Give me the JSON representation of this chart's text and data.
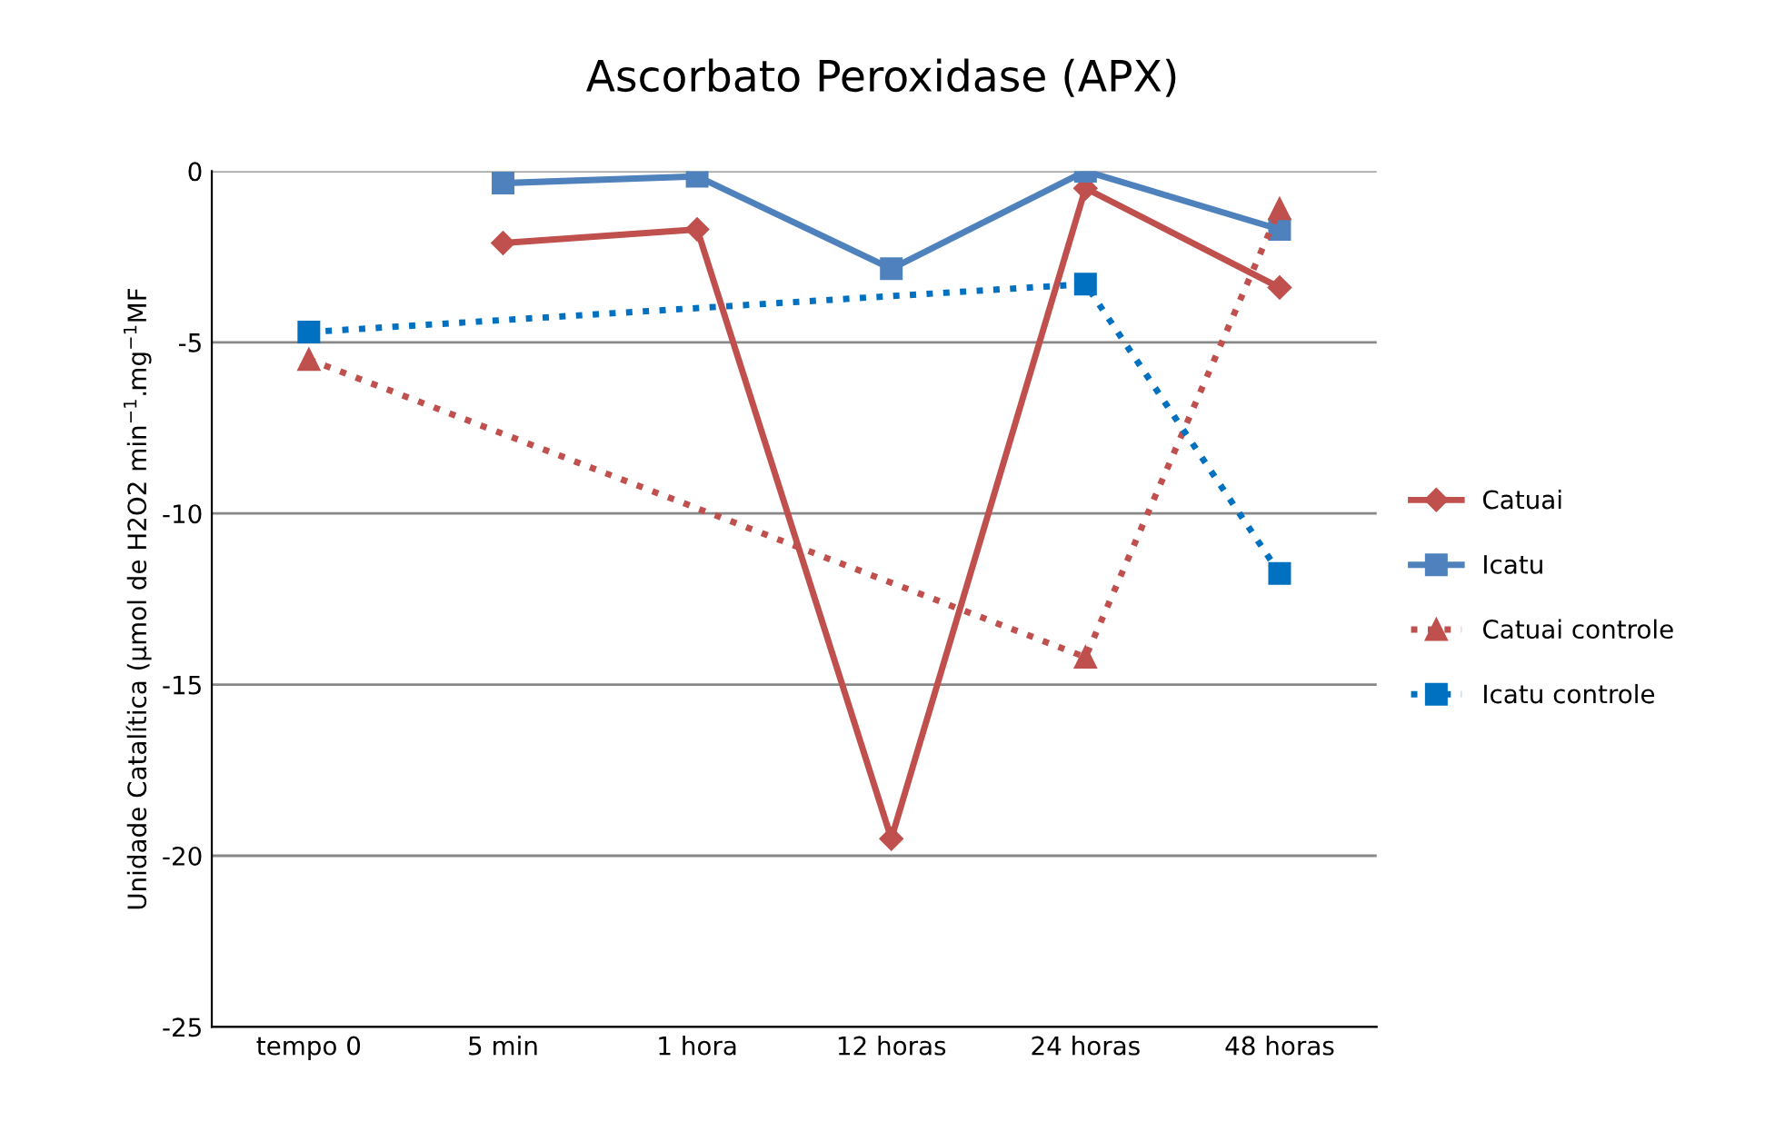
{
  "chart_data": {
    "type": "line",
    "title": "Ascorbato Peroxidase (APX)",
    "ylabel": "Unidade Catalítica (µmol de H2O2 min$^{−1}$.mg$^{−1}$MF",
    "categories": [
      "tempo 0",
      "5 min",
      "1 hora",
      "12 horas",
      "24 horas",
      "48 horas"
    ],
    "series": [
      {
        "name": "Catuai",
        "color": "#c0504d",
        "marker": "diamond",
        "line_style": "solid",
        "values": [
          null,
          -2.1,
          -1.7,
          -19.5,
          -0.5,
          -3.4
        ]
      },
      {
        "name": "Icatu",
        "color": "#4f81bd",
        "marker": "square",
        "line_style": "solid",
        "values": [
          null,
          -0.35,
          -0.15,
          -2.85,
          0,
          -1.7
        ]
      },
      {
        "name": "Catuai controle",
        "color": "#c0504d",
        "marker": "triangle",
        "line_style": "dotted",
        "values": [
          -5.5,
          null,
          null,
          null,
          -14.2,
          -1.1
        ]
      },
      {
        "name": "Icatu controle",
        "color": "#0070c0",
        "marker": "square",
        "line_style": "dotted",
        "values": [
          -4.7,
          null,
          null,
          null,
          -3.3,
          -11.75
        ]
      }
    ],
    "ylim": [
      -25,
      0
    ],
    "yticks": [
      -25,
      -20,
      -15,
      -10,
      -5,
      0
    ],
    "grid": "y",
    "legend": "right"
  }
}
